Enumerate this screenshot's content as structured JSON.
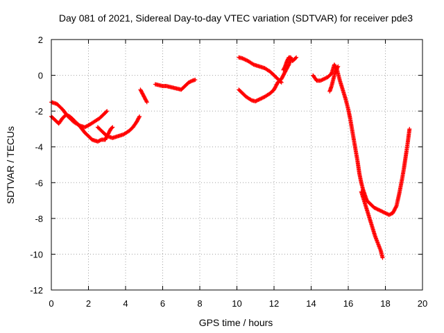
{
  "chart_data": {
    "type": "scatter",
    "title": "Day 081 of 2021, Sidereal Day-to-day VTEC variation (SDTVAR) for receiver pde3",
    "xlabel": "GPS time / hours",
    "ylabel": "SDTVAR / TECUs",
    "xlim": [
      0,
      20
    ],
    "ylim": [
      -12,
      2
    ],
    "xticks": [
      "0",
      "2",
      "4",
      "6",
      "8",
      "10",
      "12",
      "14",
      "16",
      "18",
      "20"
    ],
    "yticks": [
      "2",
      "0",
      "-2",
      "-4",
      "-6",
      "-8",
      "-10",
      "-12"
    ],
    "grid": true,
    "marker": "+",
    "color": "#ff0000",
    "series": [
      {
        "name": "arc-1",
        "x": [
          0.0,
          0.3,
          0.6,
          0.9,
          1.2,
          1.5,
          1.8,
          2.0,
          2.3,
          2.6,
          2.8,
          3.0
        ],
        "y": [
          -1.5,
          -1.6,
          -1.9,
          -2.3,
          -2.6,
          -2.8,
          -2.9,
          -2.8,
          -2.6,
          -2.4,
          -2.2,
          -2.0
        ]
      },
      {
        "name": "arc-2",
        "x": [
          0.0,
          0.2,
          0.4,
          0.6,
          0.8,
          1.0,
          1.2,
          1.5,
          1.8,
          2.0,
          2.2,
          2.5,
          2.7,
          2.9
        ],
        "y": [
          -2.3,
          -2.5,
          -2.7,
          -2.4,
          -2.2,
          -2.3,
          -2.5,
          -2.8,
          -3.2,
          -3.4,
          -3.6,
          -3.7,
          -3.6,
          -3.6
        ]
      },
      {
        "name": "arc-3",
        "x": [
          2.5,
          2.8,
          3.0,
          3.3,
          3.6,
          3.9,
          4.2,
          4.4,
          4.6,
          4.75
        ],
        "y": [
          -2.9,
          -3.2,
          -3.4,
          -3.5,
          -3.4,
          -3.3,
          -3.1,
          -2.9,
          -2.6,
          -2.3
        ]
      },
      {
        "name": "arc-4",
        "x": [
          2.9,
          3.0,
          3.1,
          3.2,
          3.3
        ],
        "y": [
          -3.6,
          -3.4,
          -3.2,
          -3.0,
          -2.9
        ]
      },
      {
        "name": "arc-5",
        "x": [
          4.8,
          4.85,
          4.9,
          4.95,
          5.0,
          5.05,
          5.1,
          5.15
        ],
        "y": [
          -0.8,
          -0.9,
          -1.0,
          -1.1,
          -1.2,
          -1.3,
          -1.4,
          -1.5
        ]
      },
      {
        "name": "arc-6",
        "x": [
          5.6,
          5.8,
          6.0,
          6.2,
          6.4,
          6.6,
          6.8,
          7.0,
          7.2,
          7.4,
          7.6,
          7.75
        ],
        "y": [
          -0.5,
          -0.55,
          -0.6,
          -0.6,
          -0.65,
          -0.7,
          -0.75,
          -0.8,
          -0.6,
          -0.4,
          -0.3,
          -0.25
        ]
      },
      {
        "name": "arc-7",
        "x": [
          10.1,
          10.3,
          10.5,
          10.8,
          11.0,
          11.2,
          11.5,
          11.8,
          12.0,
          12.2,
          12.4,
          12.6,
          12.8,
          12.9
        ],
        "y": [
          -0.8,
          -1.0,
          -1.2,
          -1.4,
          -1.45,
          -1.35,
          -1.2,
          -1.0,
          -0.8,
          -0.4,
          -0.2,
          0.2,
          0.6,
          0.9
        ]
      },
      {
        "name": "arc-8",
        "x": [
          10.1,
          10.3,
          10.6,
          10.9,
          11.2,
          11.5,
          11.8,
          12.0,
          12.2,
          12.4
        ],
        "y": [
          1.0,
          0.95,
          0.8,
          0.6,
          0.5,
          0.4,
          0.2,
          0.0,
          -0.2,
          -0.4
        ]
      },
      {
        "name": "arc-9",
        "x": [
          12.5,
          12.6,
          12.7,
          12.8,
          12.9,
          13.0,
          13.2
        ],
        "y": [
          0.3,
          0.5,
          0.8,
          1.0,
          1.0,
          0.8,
          1.0
        ]
      },
      {
        "name": "arc-10",
        "x": [
          14.1,
          14.3,
          14.5,
          14.7,
          14.9,
          15.1,
          15.25,
          15.4,
          15.55,
          15.7,
          15.85,
          16.0,
          16.1,
          16.2,
          16.3,
          16.4,
          16.5,
          16.6,
          16.7,
          16.8,
          16.9,
          17.0,
          17.2,
          17.4,
          17.6,
          17.8,
          18.0,
          18.2,
          18.4,
          18.6,
          18.75,
          18.9,
          19.0,
          19.1,
          19.2,
          19.3
        ],
        "y": [
          0.0,
          -0.3,
          -0.3,
          -0.2,
          -0.1,
          0.1,
          0.6,
          0.3,
          -0.3,
          -0.8,
          -1.3,
          -1.9,
          -2.4,
          -3.0,
          -3.6,
          -4.2,
          -4.8,
          -5.5,
          -6.0,
          -6.4,
          -6.7,
          -7.0,
          -7.2,
          -7.4,
          -7.5,
          -7.6,
          -7.7,
          -7.8,
          -7.7,
          -7.3,
          -6.6,
          -5.8,
          -5.2,
          -4.5,
          -3.8,
          -3.0
        ]
      },
      {
        "name": "arc-11",
        "x": [
          15.0,
          15.1,
          15.2,
          15.3,
          15.45
        ],
        "y": [
          -0.9,
          -0.6,
          -0.2,
          0.2,
          0.5
        ]
      },
      {
        "name": "arc-12",
        "x": [
          16.7,
          16.85,
          17.0,
          17.15,
          17.3,
          17.45,
          17.6,
          17.75,
          17.85
        ],
        "y": [
          -6.5,
          -7.0,
          -7.5,
          -8.0,
          -8.5,
          -9.0,
          -9.4,
          -9.8,
          -10.2
        ]
      }
    ]
  }
}
